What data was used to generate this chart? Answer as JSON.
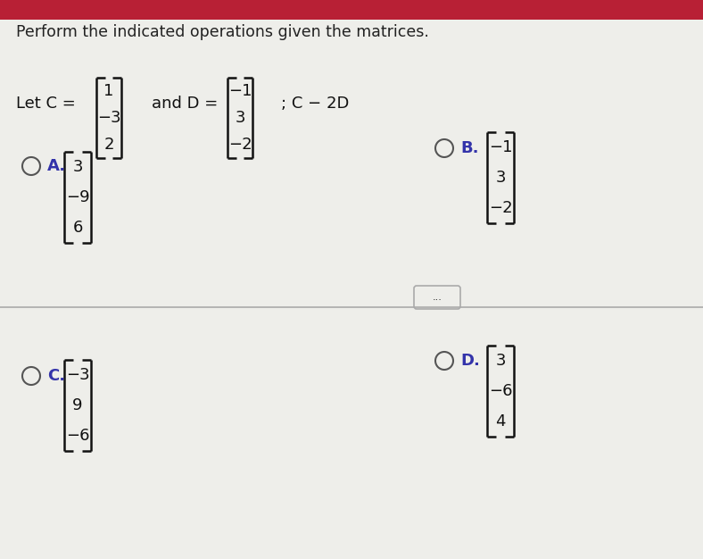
{
  "bg_color": "#eeeeea",
  "top_red_color": "#b82035",
  "title": "Perform the indicated operations given the matrices.",
  "title_fontsize": 12.5,
  "title_color": "#222222",
  "let_c_label": "Let C =",
  "and_d_label": "and D =",
  "operation_label": "; C − 2D",
  "C_values": [
    "1",
    "−3",
    "2"
  ],
  "D_values": [
    "−1",
    "3",
    "−2"
  ],
  "option_A_label": "A.",
  "option_A_values": [
    "3",
    "−9",
    "6"
  ],
  "option_B_label": "B.",
  "option_B_values": [
    "−1",
    "3",
    "−2"
  ],
  "option_C_label": "C.",
  "option_C_values": [
    "−3",
    "9",
    "−6"
  ],
  "option_D_label": "D.",
  "option_D_values": [
    "3",
    "−6",
    "4"
  ],
  "dots_label": "...",
  "matrix_bracket_color": "#111111",
  "option_label_color": "#3333aa",
  "text_color": "#111111",
  "circle_color": "#555555",
  "font_size_matrix": 13,
  "font_size_options": 13,
  "font_size_labels": 13,
  "separator_color": "#aaaaaa",
  "dots_circle_color": "#aaaaaa"
}
